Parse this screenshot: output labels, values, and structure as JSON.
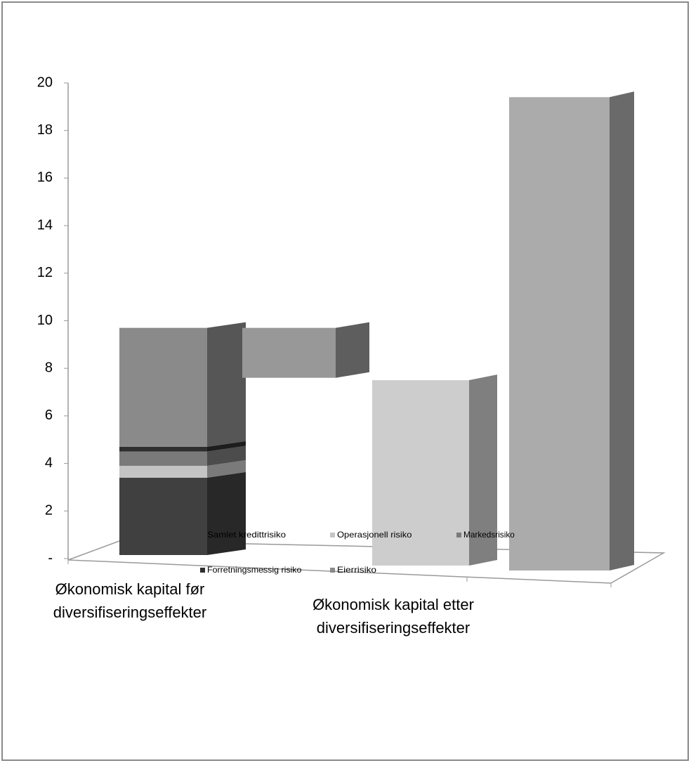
{
  "chart_data": {
    "type": "bar3d_stacked",
    "categories": [
      "Økonomisk kapital før diversifiseringseffekter",
      null,
      "Økonomisk kapital etter diversifiseringseffekter",
      null
    ],
    "series": [
      {
        "name": "Samlet kredittrisiko",
        "color": "#404040",
        "values": [
          3.4,
          null,
          null,
          null
        ]
      },
      {
        "name": "Operasjonell risiko",
        "color": "#c4c4c4",
        "values": [
          0.5,
          null,
          null,
          null
        ]
      },
      {
        "name": "Markedsrisiko",
        "color": "#7a7a7a",
        "values": [
          0.6,
          null,
          null,
          null
        ]
      },
      {
        "name": "Forretningsmessig risiko",
        "color": "#2e2e2e",
        "values": [
          0.2,
          null,
          null,
          null
        ]
      },
      {
        "name": "Eierrisiko",
        "color": "#8a8a8a",
        "values": [
          5.0,
          null,
          null,
          null
        ]
      },
      {
        "color": "#989898",
        "values": [
          null,
          2.1,
          null,
          null
        ],
        "low": [
          null,
          7.6,
          null,
          null
        ]
      },
      {
        "color": "#cdcdcd",
        "values": [
          null,
          null,
          7.5,
          null
        ]
      },
      {
        "color": "#ababab",
        "values": [
          null,
          null,
          null,
          19.4
        ]
      }
    ],
    "ylim": [
      0,
      20
    ],
    "yticks": [
      {
        "value": 0,
        "label": "-"
      },
      2,
      4,
      6,
      8,
      10,
      12,
      14,
      16,
      18,
      20
    ]
  }
}
